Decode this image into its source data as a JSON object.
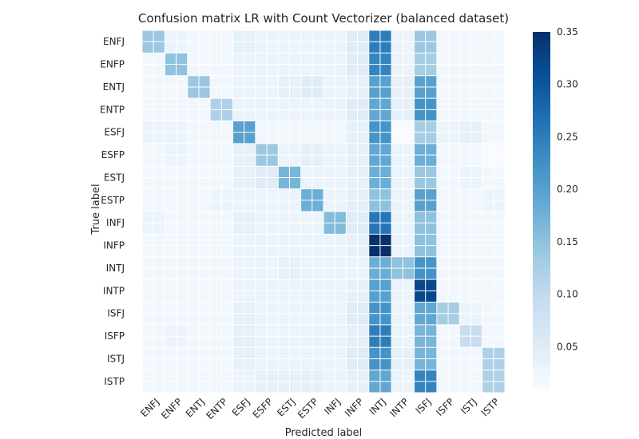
{
  "chart_data": {
    "type": "heatmap",
    "title": "Confusion matrix LR with Count Vectorizer (balanced dataset)",
    "xlabel": "Predicted label",
    "ylabel": "True label",
    "x_categories": [
      "ENFJ",
      "ENFP",
      "ENTJ",
      "ENTP",
      "ESFJ",
      "ESFP",
      "ESTJ",
      "ESTP",
      "INFJ",
      "INFP",
      "INTJ",
      "INTP",
      "ISFJ",
      "ISFP",
      "ISTJ",
      "ISTP"
    ],
    "y_categories": [
      "ENFJ",
      "ENFP",
      "ENTJ",
      "ENTP",
      "ESFJ",
      "ESFP",
      "ESTJ",
      "ESTP",
      "INFJ",
      "INFP",
      "INTJ",
      "INTP",
      "ISFJ",
      "ISFP",
      "ISTJ",
      "ISTP"
    ],
    "colorbar": {
      "min": 0.01,
      "max": 0.35,
      "ticks": [
        0.05,
        0.1,
        0.15,
        0.2,
        0.25,
        0.3,
        0.35
      ],
      "tick_labels": [
        "0.05",
        "0.10",
        "0.15",
        "0.20",
        "0.25",
        "0.30",
        "0.35"
      ],
      "colormap": "Blues"
    },
    "grid": true,
    "values": [
      [
        0.14,
        0.03,
        0.02,
        0.02,
        0.04,
        0.03,
        0.03,
        0.03,
        0.03,
        0.05,
        0.25,
        0.03,
        0.14,
        0.02,
        0.02,
        0.02
      ],
      [
        0.02,
        0.15,
        0.02,
        0.02,
        0.03,
        0.03,
        0.03,
        0.03,
        0.03,
        0.05,
        0.24,
        0.03,
        0.13,
        0.02,
        0.02,
        0.02
      ],
      [
        0.02,
        0.02,
        0.14,
        0.02,
        0.03,
        0.03,
        0.04,
        0.05,
        0.03,
        0.04,
        0.2,
        0.04,
        0.2,
        0.02,
        0.02,
        0.02
      ],
      [
        0.02,
        0.02,
        0.02,
        0.12,
        0.03,
        0.03,
        0.03,
        0.03,
        0.03,
        0.05,
        0.19,
        0.04,
        0.22,
        0.02,
        0.02,
        0.02
      ],
      [
        0.03,
        0.03,
        0.02,
        0.02,
        0.2,
        0.02,
        0.02,
        0.02,
        0.02,
        0.04,
        0.22,
        0.01,
        0.13,
        0.03,
        0.04,
        0.02
      ],
      [
        0.02,
        0.03,
        0.02,
        0.02,
        0.04,
        0.14,
        0.03,
        0.04,
        0.03,
        0.04,
        0.19,
        0.03,
        0.18,
        0.02,
        0.02,
        0.01
      ],
      [
        0.02,
        0.02,
        0.02,
        0.02,
        0.04,
        0.05,
        0.17,
        0.03,
        0.03,
        0.04,
        0.18,
        0.03,
        0.14,
        0.02,
        0.03,
        0.02
      ],
      [
        0.02,
        0.02,
        0.02,
        0.03,
        0.03,
        0.03,
        0.03,
        0.18,
        0.03,
        0.04,
        0.15,
        0.03,
        0.2,
        0.02,
        0.02,
        0.03
      ],
      [
        0.03,
        0.02,
        0.02,
        0.02,
        0.04,
        0.03,
        0.03,
        0.03,
        0.16,
        0.05,
        0.26,
        0.03,
        0.15,
        0.02,
        0.02,
        0.02
      ],
      [
        0.02,
        0.02,
        0.02,
        0.02,
        0.03,
        0.03,
        0.03,
        0.03,
        0.03,
        0.04,
        0.35,
        0.03,
        0.15,
        0.02,
        0.02,
        0.02
      ],
      [
        0.02,
        0.02,
        0.02,
        0.02,
        0.03,
        0.03,
        0.04,
        0.03,
        0.03,
        0.03,
        0.18,
        0.15,
        0.22,
        0.02,
        0.02,
        0.02
      ],
      [
        0.02,
        0.02,
        0.02,
        0.02,
        0.03,
        0.03,
        0.03,
        0.03,
        0.03,
        0.04,
        0.2,
        0.03,
        0.32,
        0.02,
        0.02,
        0.02
      ],
      [
        0.02,
        0.02,
        0.02,
        0.02,
        0.04,
        0.03,
        0.03,
        0.03,
        0.03,
        0.05,
        0.22,
        0.03,
        0.19,
        0.13,
        0.03,
        0.02
      ],
      [
        0.02,
        0.03,
        0.02,
        0.02,
        0.04,
        0.03,
        0.03,
        0.03,
        0.03,
        0.04,
        0.25,
        0.03,
        0.17,
        0.02,
        0.09,
        0.02
      ],
      [
        0.02,
        0.02,
        0.02,
        0.02,
        0.04,
        0.03,
        0.03,
        0.03,
        0.03,
        0.05,
        0.22,
        0.04,
        0.17,
        0.02,
        0.02,
        0.12
      ],
      [
        0.02,
        0.02,
        0.02,
        0.02,
        0.03,
        0.04,
        0.04,
        0.04,
        0.03,
        0.04,
        0.19,
        0.03,
        0.24,
        0.02,
        0.02,
        0.12
      ]
    ]
  }
}
